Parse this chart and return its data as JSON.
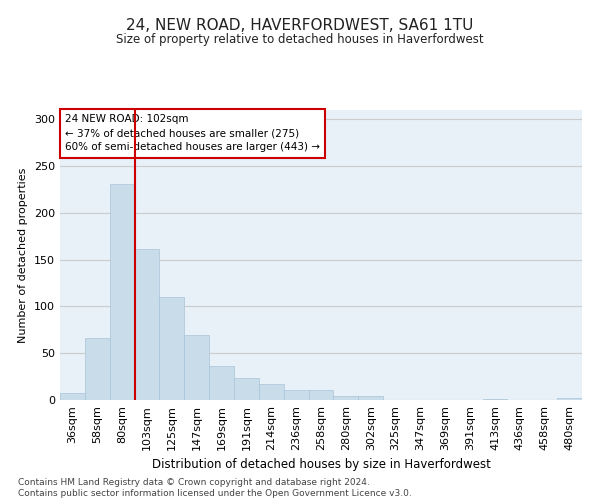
{
  "title": "24, NEW ROAD, HAVERFORDWEST, SA61 1TU",
  "subtitle": "Size of property relative to detached houses in Haverfordwest",
  "xlabel": "Distribution of detached houses by size in Haverfordwest",
  "ylabel": "Number of detached properties",
  "footer": "Contains HM Land Registry data © Crown copyright and database right 2024.\nContains public sector information licensed under the Open Government Licence v3.0.",
  "annotation_title": "24 NEW ROAD: 102sqm",
  "annotation_line1": "← 37% of detached houses are smaller (275)",
  "annotation_line2": "60% of semi-detached houses are larger (443) →",
  "bar_color": "#c9dcea",
  "bar_edge_color": "#a8c4d8",
  "annotation_box_color": "#ffffff",
  "annotation_box_edge_color": "#cc0000",
  "marker_line_color": "#cc0000",
  "categories": [
    "36sqm",
    "58sqm",
    "80sqm",
    "103sqm",
    "125sqm",
    "147sqm",
    "169sqm",
    "191sqm",
    "214sqm",
    "236sqm",
    "258sqm",
    "280sqm",
    "302sqm",
    "325sqm",
    "347sqm",
    "369sqm",
    "391sqm",
    "413sqm",
    "436sqm",
    "458sqm",
    "480sqm"
  ],
  "values": [
    8,
    66,
    231,
    161,
    110,
    70,
    36,
    24,
    17,
    11,
    11,
    4,
    4,
    0,
    0,
    0,
    0,
    1,
    0,
    0,
    2
  ],
  "ylim": [
    0,
    310
  ],
  "yticks": [
    0,
    50,
    100,
    150,
    200,
    250,
    300
  ],
  "grid_color": "#cccccc",
  "background_color": "#e8f0f8"
}
